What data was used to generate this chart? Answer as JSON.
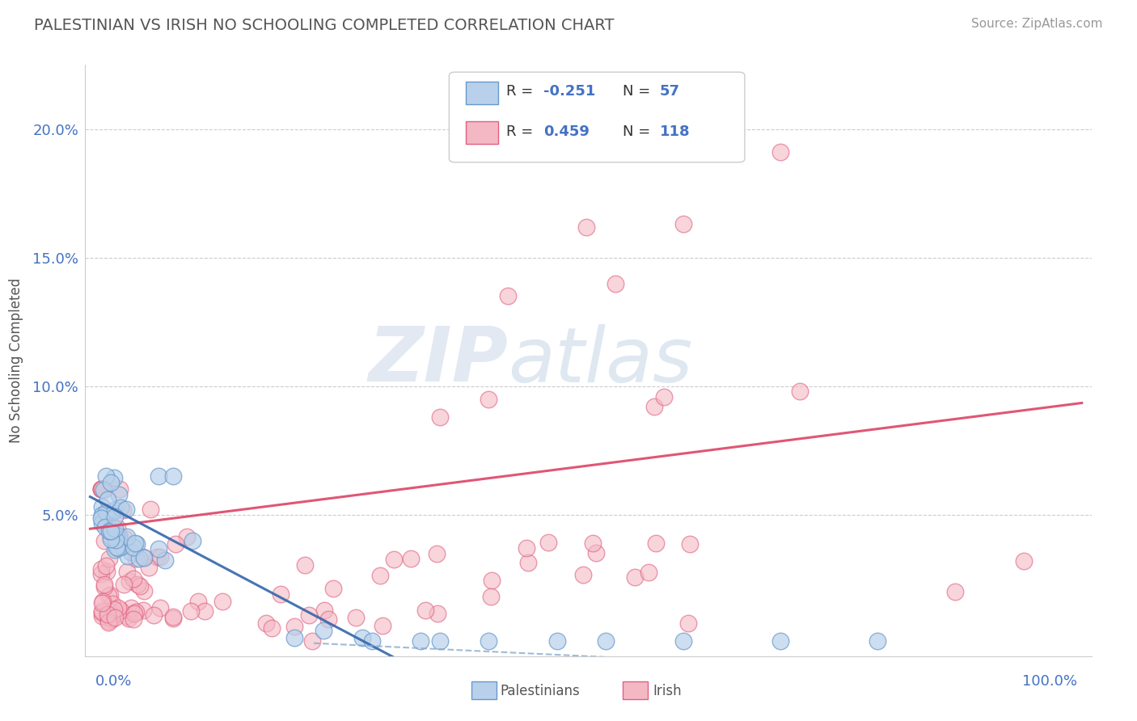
{
  "title": "PALESTINIAN VS IRISH NO SCHOOLING COMPLETED CORRELATION CHART",
  "source": "Source: ZipAtlas.com",
  "ylabel": "No Schooling Completed",
  "yticks": [
    0.0,
    0.05,
    0.1,
    0.15,
    0.2
  ],
  "ytick_labels": [
    "",
    "5.0%",
    "10.0%",
    "15.0%",
    "20.0%"
  ],
  "legend_r_blue": "-0.251",
  "legend_n_blue": "57",
  "legend_r_pink": "0.459",
  "legend_n_pink": "118",
  "blue_fill_color": "#b8d0ea",
  "blue_edge_color": "#6699cc",
  "pink_fill_color": "#f4b8c4",
  "pink_edge_color": "#e06080",
  "blue_line_color": "#3366aa",
  "pink_line_color": "#dd4466",
  "blue_dashed_color": "#88aacc",
  "watermark_color": "#ccd8e8"
}
